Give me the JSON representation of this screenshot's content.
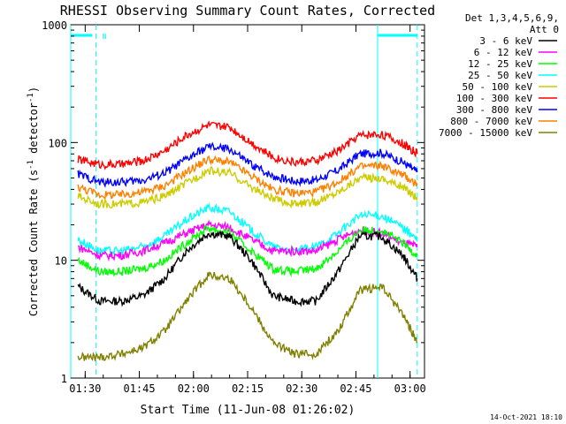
{
  "chart_data": {
    "type": "line",
    "title": "RHESSI Observing Summary Count Rates, Corrected",
    "xlabel": "Start Time (11-Jun-08 01:26:02)",
    "ylabel_parts": [
      "Corrected Count Rate (s",
      "-1",
      " detector",
      "-1",
      ")"
    ],
    "yscale": "log",
    "ylim": [
      1,
      1000
    ],
    "xlim": [
      "01:26",
      "03:04"
    ],
    "xticks": [
      "01:30",
      "01:45",
      "02:00",
      "02:15",
      "02:30",
      "02:45",
      "03:00"
    ],
    "yticks": [
      "1",
      "10",
      "100",
      "1000"
    ],
    "legend_header": [
      "Det 1,3,4,5,6,9,",
      "Att 0"
    ],
    "legend_placement": "right",
    "x_sample_times": [
      "01:28",
      "01:34",
      "01:40",
      "01:46",
      "01:52",
      "01:58",
      "02:04",
      "02:10",
      "02:16",
      "02:22",
      "02:28",
      "02:34",
      "02:40",
      "02:46",
      "02:52",
      "02:58",
      "03:02"
    ],
    "series": [
      {
        "name": "3 - 6 keV",
        "color": "#000000",
        "values": [
          6,
          4.5,
          4.5,
          5,
          7,
          12,
          17,
          16,
          10,
          5,
          4.5,
          4.5,
          8,
          16,
          16,
          11,
          7
        ]
      },
      {
        "name": "6 - 12 keV",
        "color": "#ff00ff",
        "values": [
          13,
          11,
          11,
          12,
          14,
          17,
          20,
          19,
          15,
          12,
          12,
          12,
          15,
          18,
          17,
          14,
          13
        ]
      },
      {
        "name": "12 - 25 keV",
        "color": "#00ff00",
        "values": [
          10,
          8,
          8,
          8.5,
          10,
          14,
          19,
          17,
          12,
          8.5,
          8,
          8.5,
          12,
          18,
          18,
          14,
          11
        ]
      },
      {
        "name": "25 - 50 keV",
        "color": "#00ffff",
        "values": [
          15,
          12,
          12,
          13,
          16,
          22,
          28,
          26,
          18,
          13,
          12,
          13,
          17,
          24,
          24,
          19,
          15
        ]
      },
      {
        "name": "50 - 100 keV",
        "color": "#cccc00",
        "values": [
          35,
          30,
          30,
          31,
          35,
          45,
          58,
          55,
          42,
          33,
          30,
          31,
          38,
          50,
          50,
          42,
          34
        ]
      },
      {
        "name": "100 - 300 keV",
        "color": "#ff0000",
        "values": [
          72,
          65,
          65,
          70,
          85,
          115,
          140,
          135,
          100,
          75,
          68,
          70,
          85,
          115,
          118,
          98,
          80
        ]
      },
      {
        "name": "300 - 800 keV",
        "color": "#0000ff",
        "values": [
          54,
          46,
          46,
          48,
          55,
          72,
          92,
          88,
          65,
          52,
          47,
          48,
          58,
          80,
          82,
          68,
          56
        ]
      },
      {
        "name": "800 - 7000 keV",
        "color": "#ff8000",
        "values": [
          42,
          36,
          36,
          38,
          43,
          56,
          72,
          68,
          52,
          40,
          37,
          38,
          46,
          62,
          64,
          53,
          44
        ]
      },
      {
        "name": "7000 - 15000 keV",
        "color": "#808000",
        "values": [
          1.5,
          1.5,
          1.6,
          1.8,
          2.5,
          4.5,
          7.5,
          7,
          4,
          2,
          1.6,
          1.6,
          2.5,
          5.5,
          6,
          3.5,
          2
        ]
      }
    ],
    "annotations": [
      {
        "type": "cyan-solid-vline",
        "x": "01:26"
      },
      {
        "type": "cyan-dashed-vline",
        "x": "01:33"
      },
      {
        "type": "cyan-solid-vline",
        "x": "02:51"
      },
      {
        "type": "cyan-dashed-vline",
        "x": "03:02"
      },
      {
        "type": "cyan-bar",
        "from": "01:26",
        "to": "01:32"
      },
      {
        "type": "cyan-bar",
        "from": "02:51",
        "to": "03:02"
      }
    ],
    "n_marker": "N",
    "timestamp": "14-Oct-2021 18:10"
  }
}
